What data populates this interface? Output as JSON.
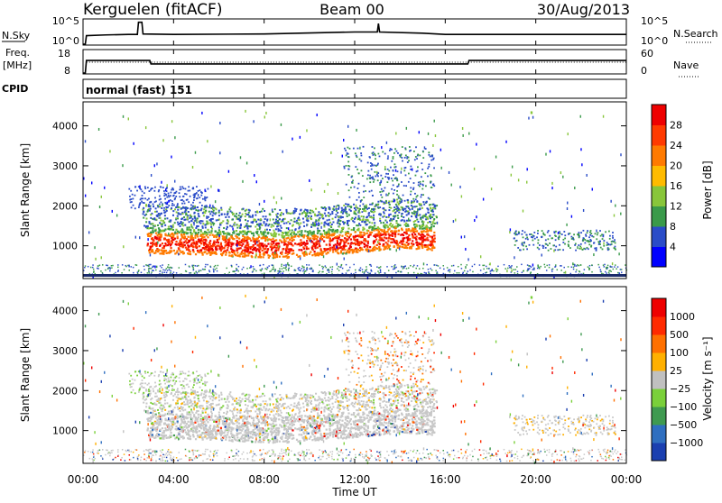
{
  "header": {
    "station": "Kerguelen (fitACF)",
    "beam": "Beam 00",
    "date": "30/Aug/2013"
  },
  "left_labels": {
    "nsky": "N.Sky",
    "freq": "Freq.",
    "freq_unit": "[MHz]",
    "cpid": "CPID"
  },
  "right_labels": {
    "nsearch": "N.Search",
    "nave": "Nave"
  },
  "cpid_text": "normal (fast) 151",
  "colors": {
    "power": [
      "#0000ff",
      "#2a4cc8",
      "#3a9a4a",
      "#88c63a",
      "#ffbb00",
      "#ff7a00",
      "#ff3a00",
      "#ee0000"
    ],
    "velocity": [
      "#1a3fb0",
      "#2f6fc0",
      "#3f9a50",
      "#7ad03a",
      "#c0c0c0",
      "#ffb000",
      "#ff7000",
      "#ff2a00",
      "#ee0000"
    ]
  },
  "chart_data": [
    {
      "type": "line",
      "name_left": "N.Sky",
      "name_right": "N.Search",
      "left_ticks": [
        "10^5",
        "10^0"
      ],
      "right_ticks": [
        "10^5",
        "10^0"
      ],
      "x_hours": [
        0,
        0.1,
        0.15,
        1,
        2,
        2.4,
        2.45,
        2.6,
        2.65,
        4,
        8,
        12,
        13,
        13.05,
        13.1,
        15,
        16,
        20,
        24
      ],
      "y_fraction": [
        0,
        0,
        0.35,
        0.38,
        0.4,
        0.4,
        0.9,
        0.9,
        0.42,
        0.4,
        0.42,
        0.5,
        0.5,
        0.85,
        0.5,
        0.45,
        0.4,
        0.4,
        0.4
      ]
    },
    {
      "type": "line",
      "name_left": "Freq. [MHz]",
      "name_right": "Nave",
      "left_ticks": [
        "18",
        "8"
      ],
      "right_ticks": [
        "60",
        "0"
      ],
      "freq_x_hours": [
        0,
        0.1,
        0.15,
        2.95,
        3.0,
        17.0,
        17.05,
        24
      ],
      "freq_mhz": [
        8,
        8,
        13.8,
        13.8,
        12.2,
        12.2,
        13.8,
        13.8
      ],
      "nave_level": 30
    },
    {
      "type": "heatmap",
      "ylabel": "Slant Range [km]",
      "yticks": [
        "4000",
        "3000",
        "2000",
        "1000"
      ],
      "ylim": [
        180,
        4600
      ],
      "xlim_hours": [
        0,
        24
      ],
      "colorbar_label": "Power [dB]",
      "colorbar_ticks": [
        "28",
        "24",
        "20",
        "16",
        "12",
        "8",
        "4"
      ]
    },
    {
      "type": "heatmap",
      "ylabel": "Slant Range [km]",
      "yticks": [
        "4000",
        "3000",
        "2000",
        "1000"
      ],
      "ylim": [
        180,
        4600
      ],
      "xlim_hours": [
        0,
        24
      ],
      "xlabel": "Time UT",
      "xticks": [
        "00:00",
        "04:00",
        "08:00",
        "12:00",
        "16:00",
        "20:00",
        "00:00"
      ],
      "colorbar_label": "Velocity [m s⁻¹]",
      "colorbar_ticks": [
        "1000",
        "500",
        "100",
        "25",
        "−25",
        "−100",
        "−500",
        "−1000"
      ]
    }
  ]
}
